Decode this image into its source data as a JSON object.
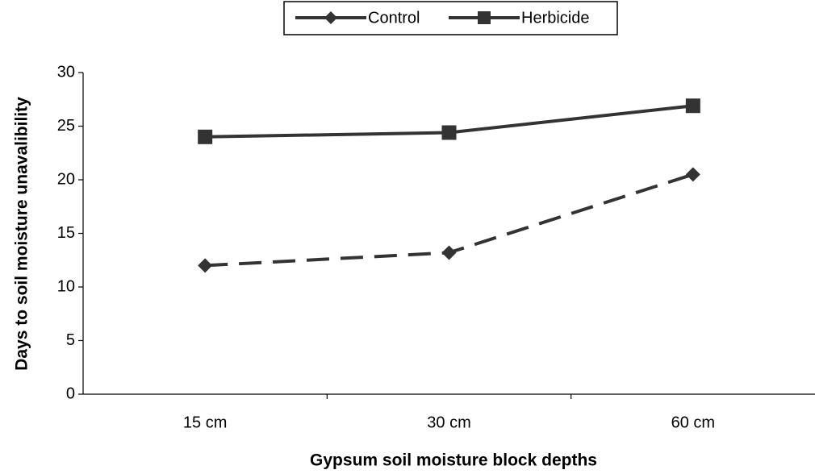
{
  "chart_data": {
    "type": "line",
    "x_label": "Gypsum soil moisture block depths",
    "y_label": "Days to soil moisture unavalibility",
    "categories": [
      "15 cm",
      "30 cm",
      "60 cm"
    ],
    "series": [
      {
        "name": "Control",
        "color": "#333333",
        "marker": "diamond",
        "dashed": true,
        "values": [
          12,
          13.2,
          20.5
        ]
      },
      {
        "name": "Herbicide",
        "color": "#333333",
        "marker": "square",
        "dashed": false,
        "values": [
          24,
          24.4,
          26.9
        ]
      }
    ],
    "ylim": [
      0,
      30
    ],
    "yticks": [
      0,
      5,
      10,
      15,
      20,
      25,
      30
    ],
    "grid": false,
    "legend": "top"
  }
}
